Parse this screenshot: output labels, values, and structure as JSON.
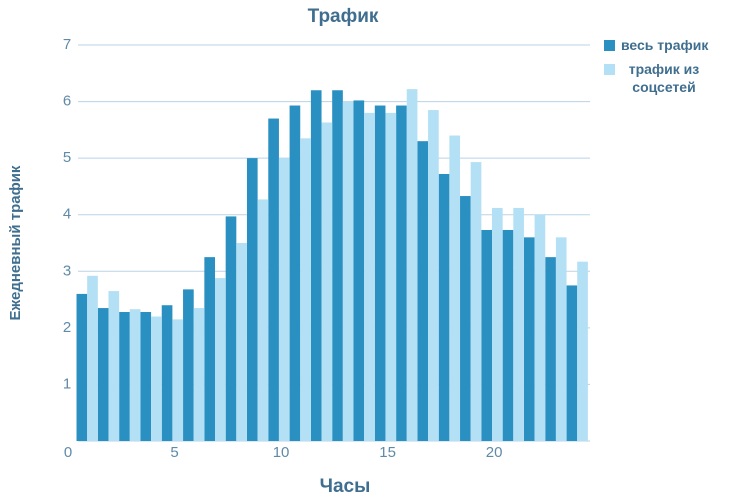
{
  "chart_data": {
    "type": "bar",
    "title": "Трафик",
    "x_label": "Часы",
    "y_label": "Ежедневный трафик",
    "x": [
      1,
      2,
      3,
      4,
      5,
      6,
      7,
      8,
      9,
      10,
      11,
      12,
      13,
      14,
      15,
      16,
      17,
      18,
      19,
      20,
      21,
      22,
      23,
      24
    ],
    "xlim": [
      0,
      24.5
    ],
    "xticks": [
      0,
      5,
      10,
      15,
      20
    ],
    "ylim": [
      0,
      7
    ],
    "yticks": [
      1,
      2,
      3,
      4,
      5,
      6,
      7
    ],
    "grid": true,
    "legend": "right",
    "series": [
      {
        "name": "весь трафик",
        "color": "#2a8fc1",
        "values": [
          2.6,
          2.35,
          2.28,
          2.28,
          2.4,
          2.68,
          3.25,
          3.97,
          5.0,
          5.7,
          5.93,
          6.2,
          6.2,
          6.02,
          5.93,
          5.93,
          5.3,
          4.72,
          4.33,
          3.73,
          3.73,
          3.6,
          3.25,
          2.75
        ]
      },
      {
        "name": "трафик из соцсетей",
        "color": "#b3e0f5",
        "values": [
          2.92,
          2.65,
          2.33,
          2.2,
          2.15,
          2.35,
          2.88,
          3.5,
          4.27,
          5.0,
          5.35,
          5.63,
          6.0,
          5.8,
          5.8,
          6.22,
          5.85,
          5.4,
          4.93,
          4.12,
          4.12,
          4.0,
          3.6,
          3.17
        ]
      }
    ]
  }
}
